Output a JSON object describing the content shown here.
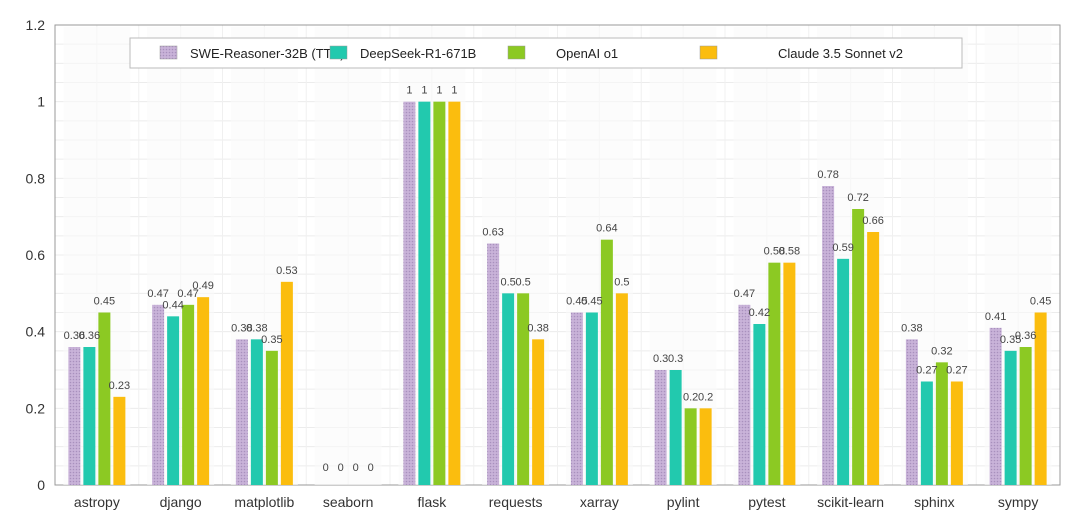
{
  "chart_data": {
    "type": "bar",
    "title": "",
    "xlabel": "",
    "ylabel": "",
    "ylim": [
      0,
      1.2
    ],
    "yticks": [
      "0",
      "0.2",
      "0.4",
      "0.6",
      "0.8",
      "1",
      "1.2"
    ],
    "ytick_values": [
      0,
      0.2,
      0.4,
      0.6,
      0.8,
      1.0,
      1.2
    ],
    "grid": true,
    "legend_position": "top-center",
    "categories": [
      "astropy",
      "django",
      "matplotlib",
      "seaborn",
      "flask",
      "requests",
      "xarray",
      "pylint",
      "pytest",
      "scikit-learn",
      "sphinx",
      "sympy"
    ],
    "series": [
      {
        "name": "SWE-Reasoner-32B (TTS)",
        "color": "#c9b3d9",
        "pattern": "dotted",
        "values": [
          0.36,
          0.47,
          0.38,
          0,
          1,
          0.63,
          0.45,
          0.3,
          0.47,
          0.78,
          0.38,
          0.41
        ],
        "labels": [
          "0.36",
          "0.47",
          "0.38",
          "0",
          "1",
          "0.63",
          "0.45",
          "0.3",
          "0.47",
          "0.78",
          "0.38",
          "0.41"
        ]
      },
      {
        "name": "DeepSeek-R1-671B",
        "color": "#22c9ae",
        "values": [
          0.36,
          0.44,
          0.38,
          0,
          1,
          0.5,
          0.45,
          0.3,
          0.42,
          0.59,
          0.27,
          0.35
        ],
        "labels": [
          "0.36",
          "0.44",
          "0.38",
          "0",
          "1",
          "0.5",
          "0.45",
          "0.3",
          "0.42",
          "0.59",
          "0.27",
          "0.35"
        ]
      },
      {
        "name": "OpenAI o1",
        "color": "#8cc923",
        "values": [
          0.45,
          0.47,
          0.35,
          0,
          1,
          0.5,
          0.64,
          0.2,
          0.58,
          0.72,
          0.32,
          0.36
        ],
        "labels": [
          "0.45",
          "0.47",
          "0.35",
          "0",
          "1",
          "0.5",
          "0.64",
          "0.2",
          "0.58",
          "0.72",
          "0.32",
          "0.36"
        ]
      },
      {
        "name": "Claude 3.5 Sonnet v2",
        "color": "#fbbd0e",
        "values": [
          0.23,
          0.49,
          0.53,
          0,
          1,
          0.38,
          0.5,
          0.2,
          0.58,
          0.66,
          0.27,
          0.45
        ],
        "labels": [
          "0.23",
          "0.49",
          "0.53",
          "0",
          "1",
          "0.38",
          "0.5",
          "0.2",
          "0.58",
          "0.66",
          "0.27",
          "0.45"
        ]
      }
    ]
  }
}
